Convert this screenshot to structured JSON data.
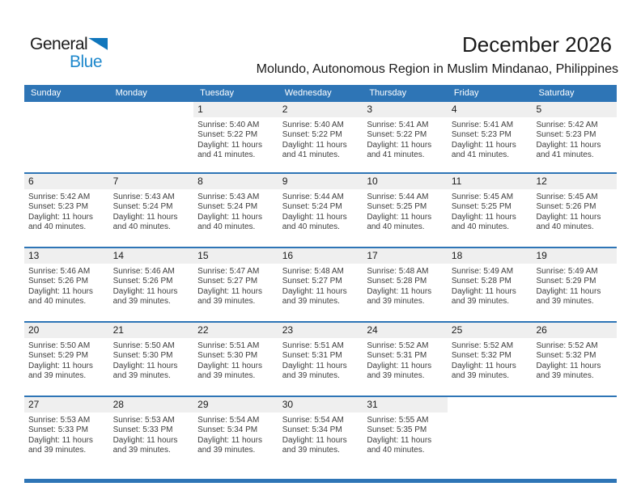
{
  "logo": {
    "text_top": "General",
    "text_bottom": "Blue"
  },
  "header": {
    "title": "December 2026",
    "location": "Molundo, Autonomous Region in Muslim Mindanao, Philippines"
  },
  "weekdays": [
    "Sunday",
    "Monday",
    "Tuesday",
    "Wednesday",
    "Thursday",
    "Friday",
    "Saturday"
  ],
  "colors": {
    "accent_blue": "#2E75B6",
    "day_band_gray": "#EFEFEF",
    "logo_blue": "#1E88CC",
    "logo_triangle_blue": "#1076BC"
  },
  "weeks": [
    [
      null,
      null,
      {
        "day": "1",
        "sunrise": "Sunrise: 5:40 AM",
        "sunset": "Sunset: 5:22 PM",
        "daylight_line1": "Daylight: 11 hours",
        "daylight_line2": "and 41 minutes."
      },
      {
        "day": "2",
        "sunrise": "Sunrise: 5:40 AM",
        "sunset": "Sunset: 5:22 PM",
        "daylight_line1": "Daylight: 11 hours",
        "daylight_line2": "and 41 minutes."
      },
      {
        "day": "3",
        "sunrise": "Sunrise: 5:41 AM",
        "sunset": "Sunset: 5:22 PM",
        "daylight_line1": "Daylight: 11 hours",
        "daylight_line2": "and 41 minutes."
      },
      {
        "day": "4",
        "sunrise": "Sunrise: 5:41 AM",
        "sunset": "Sunset: 5:23 PM",
        "daylight_line1": "Daylight: 11 hours",
        "daylight_line2": "and 41 minutes."
      },
      {
        "day": "5",
        "sunrise": "Sunrise: 5:42 AM",
        "sunset": "Sunset: 5:23 PM",
        "daylight_line1": "Daylight: 11 hours",
        "daylight_line2": "and 41 minutes."
      }
    ],
    [
      {
        "day": "6",
        "sunrise": "Sunrise: 5:42 AM",
        "sunset": "Sunset: 5:23 PM",
        "daylight_line1": "Daylight: 11 hours",
        "daylight_line2": "and 40 minutes."
      },
      {
        "day": "7",
        "sunrise": "Sunrise: 5:43 AM",
        "sunset": "Sunset: 5:24 PM",
        "daylight_line1": "Daylight: 11 hours",
        "daylight_line2": "and 40 minutes."
      },
      {
        "day": "8",
        "sunrise": "Sunrise: 5:43 AM",
        "sunset": "Sunset: 5:24 PM",
        "daylight_line1": "Daylight: 11 hours",
        "daylight_line2": "and 40 minutes."
      },
      {
        "day": "9",
        "sunrise": "Sunrise: 5:44 AM",
        "sunset": "Sunset: 5:24 PM",
        "daylight_line1": "Daylight: 11 hours",
        "daylight_line2": "and 40 minutes."
      },
      {
        "day": "10",
        "sunrise": "Sunrise: 5:44 AM",
        "sunset": "Sunset: 5:25 PM",
        "daylight_line1": "Daylight: 11 hours",
        "daylight_line2": "and 40 minutes."
      },
      {
        "day": "11",
        "sunrise": "Sunrise: 5:45 AM",
        "sunset": "Sunset: 5:25 PM",
        "daylight_line1": "Daylight: 11 hours",
        "daylight_line2": "and 40 minutes."
      },
      {
        "day": "12",
        "sunrise": "Sunrise: 5:45 AM",
        "sunset": "Sunset: 5:26 PM",
        "daylight_line1": "Daylight: 11 hours",
        "daylight_line2": "and 40 minutes."
      }
    ],
    [
      {
        "day": "13",
        "sunrise": "Sunrise: 5:46 AM",
        "sunset": "Sunset: 5:26 PM",
        "daylight_line1": "Daylight: 11 hours",
        "daylight_line2": "and 40 minutes."
      },
      {
        "day": "14",
        "sunrise": "Sunrise: 5:46 AM",
        "sunset": "Sunset: 5:26 PM",
        "daylight_line1": "Daylight: 11 hours",
        "daylight_line2": "and 39 minutes."
      },
      {
        "day": "15",
        "sunrise": "Sunrise: 5:47 AM",
        "sunset": "Sunset: 5:27 PM",
        "daylight_line1": "Daylight: 11 hours",
        "daylight_line2": "and 39 minutes."
      },
      {
        "day": "16",
        "sunrise": "Sunrise: 5:48 AM",
        "sunset": "Sunset: 5:27 PM",
        "daylight_line1": "Daylight: 11 hours",
        "daylight_line2": "and 39 minutes."
      },
      {
        "day": "17",
        "sunrise": "Sunrise: 5:48 AM",
        "sunset": "Sunset: 5:28 PM",
        "daylight_line1": "Daylight: 11 hours",
        "daylight_line2": "and 39 minutes."
      },
      {
        "day": "18",
        "sunrise": "Sunrise: 5:49 AM",
        "sunset": "Sunset: 5:28 PM",
        "daylight_line1": "Daylight: 11 hours",
        "daylight_line2": "and 39 minutes."
      },
      {
        "day": "19",
        "sunrise": "Sunrise: 5:49 AM",
        "sunset": "Sunset: 5:29 PM",
        "daylight_line1": "Daylight: 11 hours",
        "daylight_line2": "and 39 minutes."
      }
    ],
    [
      {
        "day": "20",
        "sunrise": "Sunrise: 5:50 AM",
        "sunset": "Sunset: 5:29 PM",
        "daylight_line1": "Daylight: 11 hours",
        "daylight_line2": "and 39 minutes."
      },
      {
        "day": "21",
        "sunrise": "Sunrise: 5:50 AM",
        "sunset": "Sunset: 5:30 PM",
        "daylight_line1": "Daylight: 11 hours",
        "daylight_line2": "and 39 minutes."
      },
      {
        "day": "22",
        "sunrise": "Sunrise: 5:51 AM",
        "sunset": "Sunset: 5:30 PM",
        "daylight_line1": "Daylight: 11 hours",
        "daylight_line2": "and 39 minutes."
      },
      {
        "day": "23",
        "sunrise": "Sunrise: 5:51 AM",
        "sunset": "Sunset: 5:31 PM",
        "daylight_line1": "Daylight: 11 hours",
        "daylight_line2": "and 39 minutes."
      },
      {
        "day": "24",
        "sunrise": "Sunrise: 5:52 AM",
        "sunset": "Sunset: 5:31 PM",
        "daylight_line1": "Daylight: 11 hours",
        "daylight_line2": "and 39 minutes."
      },
      {
        "day": "25",
        "sunrise": "Sunrise: 5:52 AM",
        "sunset": "Sunset: 5:32 PM",
        "daylight_line1": "Daylight: 11 hours",
        "daylight_line2": "and 39 minutes."
      },
      {
        "day": "26",
        "sunrise": "Sunrise: 5:52 AM",
        "sunset": "Sunset: 5:32 PM",
        "daylight_line1": "Daylight: 11 hours",
        "daylight_line2": "and 39 minutes."
      }
    ],
    [
      {
        "day": "27",
        "sunrise": "Sunrise: 5:53 AM",
        "sunset": "Sunset: 5:33 PM",
        "daylight_line1": "Daylight: 11 hours",
        "daylight_line2": "and 39 minutes."
      },
      {
        "day": "28",
        "sunrise": "Sunrise: 5:53 AM",
        "sunset": "Sunset: 5:33 PM",
        "daylight_line1": "Daylight: 11 hours",
        "daylight_line2": "and 39 minutes."
      },
      {
        "day": "29",
        "sunrise": "Sunrise: 5:54 AM",
        "sunset": "Sunset: 5:34 PM",
        "daylight_line1": "Daylight: 11 hours",
        "daylight_line2": "and 39 minutes."
      },
      {
        "day": "30",
        "sunrise": "Sunrise: 5:54 AM",
        "sunset": "Sunset: 5:34 PM",
        "daylight_line1": "Daylight: 11 hours",
        "daylight_line2": "and 39 minutes."
      },
      {
        "day": "31",
        "sunrise": "Sunrise: 5:55 AM",
        "sunset": "Sunset: 5:35 PM",
        "daylight_line1": "Daylight: 11 hours",
        "daylight_line2": "and 40 minutes."
      },
      null,
      null
    ]
  ]
}
